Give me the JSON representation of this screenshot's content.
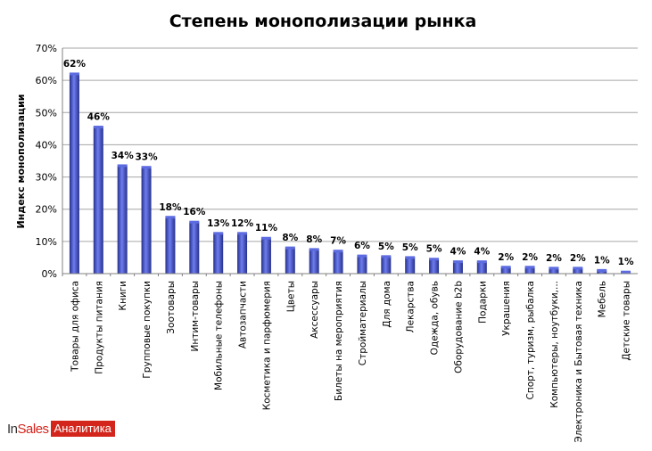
{
  "chart_data": {
    "type": "bar",
    "title": "Степень монополизации рынка",
    "xlabel": "",
    "ylabel": "Индекс монополизации",
    "ylim": [
      0,
      70
    ],
    "yticks": [
      "0%",
      "10%",
      "20%",
      "30%",
      "40%",
      "50%",
      "60%",
      "70%"
    ],
    "grid": true,
    "categories": [
      "Товары для офиса",
      "Продукты питания",
      "Книги",
      "Групповые покупки",
      "Зоотовары",
      "Интим-товары",
      "Мобильные телефоны",
      "Автозапчасти",
      "Косметика и парфюмерия",
      "Цветы",
      "Аксессуары",
      "Билеты на мероприятия",
      "Стройматериалы",
      "Для дома",
      "Лекарства",
      "Одежда, обувь",
      "Оборудование b2b",
      "Подарки",
      "Украшения",
      "Спорт, туризм, рыбалка",
      "Компьютеры, ноутбуки,...",
      "Электроника и Бытовая техника",
      "Мебель",
      "Детские товары"
    ],
    "values": [
      62,
      46,
      34,
      33,
      18,
      16,
      13,
      12,
      11,
      8,
      8,
      7,
      6,
      5,
      5,
      5,
      4,
      4,
      2,
      2,
      2,
      2,
      1,
      1
    ],
    "data_labels": [
      "62%",
      "46%",
      "34%",
      "33%",
      "18%",
      "16%",
      "13%",
      "12%",
      "11%",
      "8%",
      "8%",
      "7%",
      "6%",
      "5%",
      "5%",
      "5%",
      "4%",
      "4%",
      "2%",
      "2%",
      "2%",
      "2%",
      "1%",
      "1%"
    ],
    "plot_values": [
      62,
      45.5,
      33.5,
      33,
      17.5,
      16,
      12.5,
      12.5,
      11,
      8,
      7.5,
      7,
      5.5,
      5.3,
      5,
      4.5,
      3.7,
      3.7,
      2,
      2,
      1.7,
      1.7,
      1,
      0.5
    ]
  },
  "logo": {
    "part1": "In",
    "part2": "Sales",
    "part3": "Аналитика"
  },
  "colors": {
    "bar": "#3f4ec0",
    "grid": "#a6a6a6",
    "axis": "#808080"
  }
}
